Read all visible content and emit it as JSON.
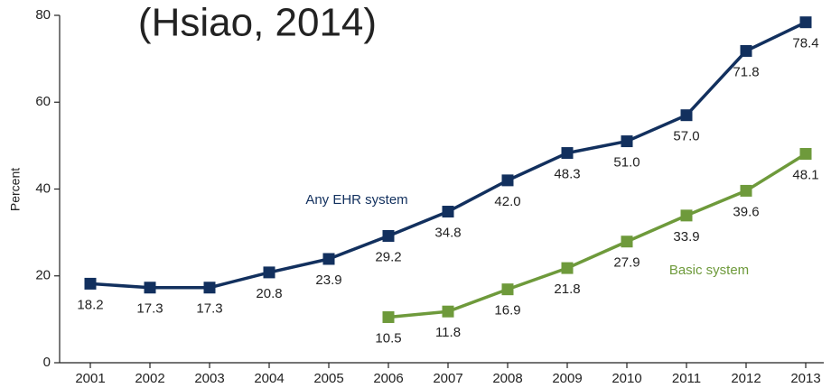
{
  "chart_data": {
    "type": "line",
    "title": "(Hsiao, 2014)",
    "y_label": "Percent",
    "categories": [
      "2001",
      "2002",
      "2003",
      "2004",
      "2005",
      "2006",
      "2007",
      "2008",
      "2009",
      "2010",
      "2011",
      "2012",
      "2013"
    ],
    "series": [
      {
        "name": "Any EHR system",
        "color": "#12305e",
        "values": [
          18.2,
          17.3,
          17.3,
          20.8,
          23.9,
          29.2,
          34.8,
          42.0,
          48.3,
          51.0,
          57.0,
          71.8,
          78.4
        ],
        "value_labels": [
          "18.2",
          "17.3",
          "17.3",
          "20.8",
          "23.9",
          "29.2",
          "34.8",
          "42.0",
          "48.3",
          "51.0",
          "57.0",
          "71.8",
          "78.4"
        ]
      },
      {
        "name": "Basic system",
        "color": "#6e9a3b",
        "values": [
          null,
          null,
          null,
          null,
          null,
          10.5,
          11.8,
          16.9,
          21.8,
          27.9,
          33.9,
          39.6,
          48.1
        ],
        "value_labels": [
          null,
          null,
          null,
          null,
          null,
          "10.5",
          "11.8",
          "16.9",
          "21.8",
          "27.9",
          "33.9",
          "39.6",
          "48.1"
        ]
      }
    ],
    "ylim": [
      0,
      80
    ],
    "yticks": [
      0,
      20,
      40,
      60,
      80
    ],
    "grid": false
  }
}
